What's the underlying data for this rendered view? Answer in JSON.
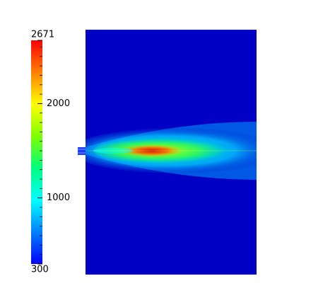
{
  "chart_data": {
    "type": "colorbar-field",
    "clim": [
      300,
      2671
    ],
    "ticks": [
      300,
      1000,
      2000,
      2671
    ],
    "minor_ticks": [
      400,
      500,
      600,
      700,
      800,
      900,
      1100,
      1200,
      1300,
      1400,
      1500,
      1600,
      1700,
      1800,
      1900,
      2100,
      2200,
      2300,
      2400,
      2500,
      2600
    ],
    "colormap": [
      "#0000ff",
      "#0080ff",
      "#00ffff",
      "#00ff80",
      "#80ff00",
      "#ffff00",
      "#ff8000",
      "#ff0000"
    ],
    "field_background": "#0000c4"
  }
}
